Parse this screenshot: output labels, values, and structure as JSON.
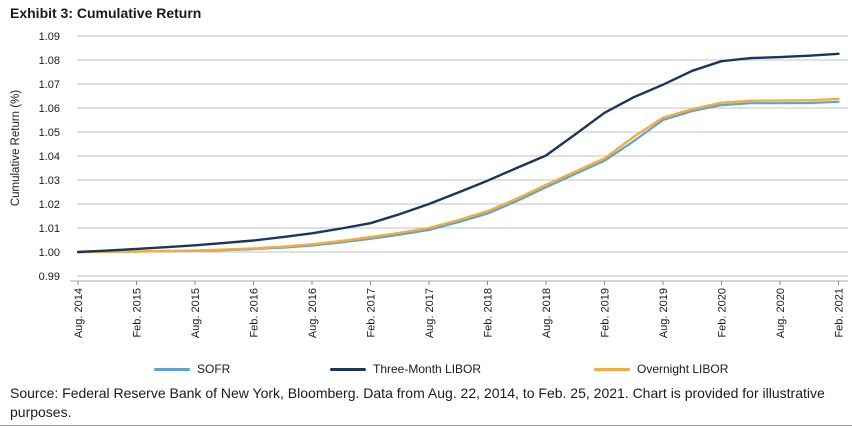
{
  "title": "Exhibit 3: Cumulative Return",
  "source_note": "Source: Federal Reserve Bank of New York, Bloomberg. Data from Aug. 22, 2014, to Feb. 25, 2021. Chart is provided for illustrative purposes.",
  "chart_data": {
    "type": "line",
    "title": "Exhibit 3: Cumulative Return",
    "xlabel": "",
    "ylabel": "Cumulative Return (%)",
    "ylim": [
      0.99,
      1.09
    ],
    "ytick_labels": [
      "1.09",
      "1.08",
      "1.07",
      "1.06",
      "1.05",
      "1.04",
      "1.03",
      "1.02",
      "1.01",
      "1.00",
      "0.99"
    ],
    "ytick_values": [
      1.09,
      1.08,
      1.07,
      1.06,
      1.05,
      1.04,
      1.03,
      1.02,
      1.01,
      1.0,
      0.99
    ],
    "grid": "horizontal",
    "legend_position": "bottom",
    "x_unit": "months since Aug. 2014",
    "xtick_months": [
      0,
      6,
      12,
      18,
      24,
      30,
      36,
      42,
      48,
      54,
      60,
      66,
      72,
      78
    ],
    "xtick_labels": [
      "Aug. 2014",
      "Feb. 2015",
      "Aug. 2015",
      "Feb. 2016",
      "Aug. 2016",
      "Feb. 2017",
      "Aug. 2017",
      "Feb. 2018",
      "Aug. 2018",
      "Feb. 2019",
      "Aug. 2019",
      "Feb. 2020",
      "Aug. 2020",
      "Feb. 2021"
    ],
    "x_sample_months": [
      0,
      3,
      6,
      9,
      12,
      15,
      18,
      21,
      24,
      27,
      30,
      33,
      36,
      39,
      42,
      45,
      48,
      51,
      54,
      57,
      60,
      63,
      66,
      69,
      72,
      75,
      78
    ],
    "series": [
      {
        "name": "SOFR",
        "color": "#5BA4D4",
        "values": [
          1.0,
          1.0001,
          1.0002,
          1.0003,
          1.0005,
          1.0008,
          1.0012,
          1.0018,
          1.0027,
          1.004,
          1.0055,
          1.0072,
          1.0092,
          1.0124,
          1.016,
          1.0212,
          1.027,
          1.0325,
          1.038,
          1.0462,
          1.055,
          1.0587,
          1.0612,
          1.062,
          1.062,
          1.0621,
          1.0626
        ]
      },
      {
        "name": "Three-Month LIBOR",
        "color": "#17375E",
        "values": [
          1.0,
          1.0006,
          1.0013,
          1.002,
          1.0028,
          1.0038,
          1.0048,
          1.0062,
          1.0078,
          1.0098,
          1.012,
          1.0158,
          1.02,
          1.0248,
          1.0297,
          1.035,
          1.0402,
          1.049,
          1.058,
          1.0645,
          1.0697,
          1.0755,
          1.0795,
          1.0808,
          1.0812,
          1.0818,
          1.0826
        ]
      },
      {
        "name": "Overnight LIBOR",
        "color": "#F5AC3C",
        "values": [
          1.0,
          1.0001,
          1.0002,
          1.0004,
          1.0006,
          1.001,
          1.0015,
          1.0022,
          1.0032,
          1.0046,
          1.0062,
          1.008,
          1.01,
          1.0133,
          1.017,
          1.0222,
          1.028,
          1.0335,
          1.039,
          1.048,
          1.056,
          1.0595,
          1.0622,
          1.063,
          1.0631,
          1.0632,
          1.0638
        ]
      }
    ]
  }
}
